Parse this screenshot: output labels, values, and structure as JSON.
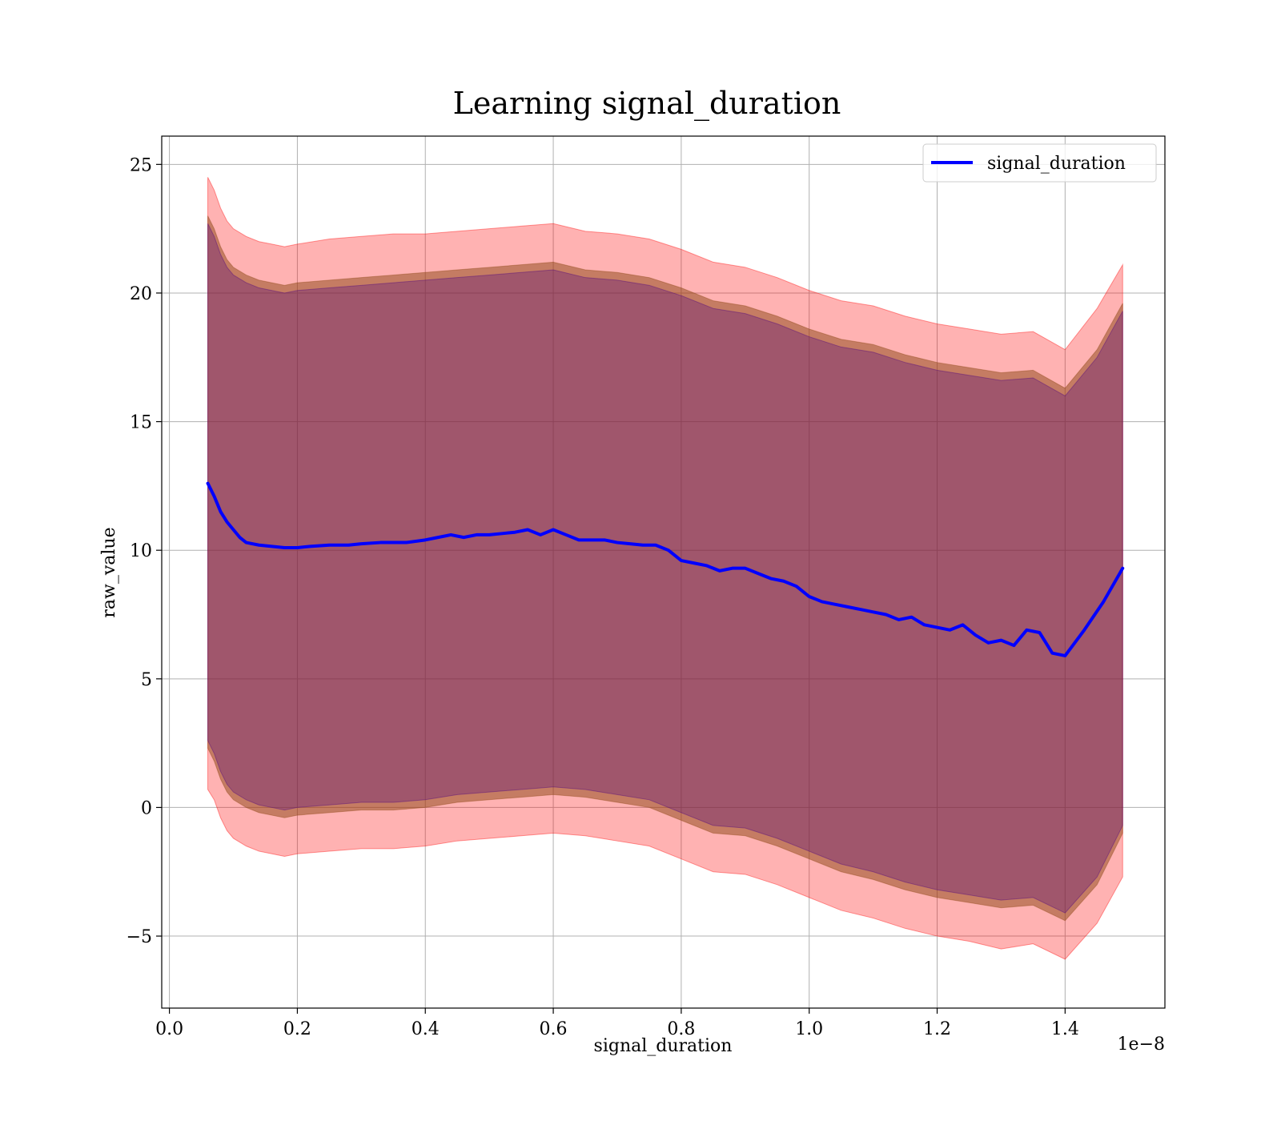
{
  "chart_data": {
    "type": "line",
    "title": "Learning signal_duration",
    "xlabel": "signal_duration",
    "ylabel": "raw_value",
    "x_offset_text": "1e−8",
    "xlim": [
      -0.012,
      1.556
    ],
    "ylim": [
      -7.8,
      26.1
    ],
    "x_ticks": [
      0.0,
      0.2,
      0.4,
      0.6,
      0.8,
      1.0,
      1.2,
      1.4
    ],
    "x_tick_labels": [
      "0.0",
      "0.2",
      "0.4",
      "0.6",
      "0.8",
      "1.0",
      "1.2",
      "1.4"
    ],
    "y_ticks": [
      -5,
      0,
      5,
      10,
      15,
      20,
      25
    ],
    "y_tick_labels": [
      "−5",
      "0",
      "5",
      "10",
      "15",
      "20",
      "25"
    ],
    "grid": true,
    "legend_position": "top-right",
    "colors": {
      "line": "#0000ff",
      "outer_band": "#ff0000",
      "middle_band": "#8b4513",
      "inner_band": "#4b0082"
    },
    "series": [
      {
        "name": "signal_duration",
        "x": [
          0.06,
          0.07,
          0.08,
          0.09,
          0.1,
          0.11,
          0.12,
          0.14,
          0.16,
          0.18,
          0.2,
          0.22,
          0.25,
          0.28,
          0.3,
          0.33,
          0.35,
          0.37,
          0.4,
          0.42,
          0.44,
          0.46,
          0.48,
          0.5,
          0.52,
          0.54,
          0.56,
          0.58,
          0.6,
          0.62,
          0.64,
          0.66,
          0.68,
          0.7,
          0.72,
          0.74,
          0.76,
          0.78,
          0.8,
          0.82,
          0.84,
          0.86,
          0.88,
          0.9,
          0.92,
          0.94,
          0.96,
          0.98,
          1.0,
          1.02,
          1.04,
          1.06,
          1.08,
          1.1,
          1.12,
          1.14,
          1.16,
          1.18,
          1.2,
          1.22,
          1.24,
          1.26,
          1.28,
          1.3,
          1.32,
          1.34,
          1.36,
          1.38,
          1.4,
          1.43,
          1.46,
          1.49
        ],
        "y": [
          12.6,
          12.1,
          11.5,
          11.1,
          10.8,
          10.5,
          10.3,
          10.2,
          10.15,
          10.1,
          10.1,
          10.15,
          10.2,
          10.2,
          10.25,
          10.3,
          10.3,
          10.3,
          10.4,
          10.5,
          10.6,
          10.5,
          10.6,
          10.6,
          10.65,
          10.7,
          10.8,
          10.6,
          10.8,
          10.6,
          10.4,
          10.4,
          10.4,
          10.3,
          10.25,
          10.2,
          10.2,
          10.0,
          9.6,
          9.5,
          9.4,
          9.2,
          9.3,
          9.3,
          9.1,
          8.9,
          8.8,
          8.6,
          8.2,
          8.0,
          7.9,
          7.8,
          7.7,
          7.6,
          7.5,
          7.3,
          7.4,
          7.1,
          7.0,
          6.9,
          7.1,
          6.7,
          6.4,
          6.5,
          6.3,
          6.9,
          6.8,
          6.0,
          5.9,
          6.9,
          8.0,
          9.3
        ]
      }
    ],
    "bands": [
      {
        "color": "outer_band",
        "x": [
          0.06,
          0.07,
          0.08,
          0.09,
          0.1,
          0.12,
          0.14,
          0.16,
          0.18,
          0.2,
          0.25,
          0.3,
          0.35,
          0.4,
          0.45,
          0.5,
          0.55,
          0.6,
          0.65,
          0.7,
          0.75,
          0.8,
          0.85,
          0.9,
          0.95,
          1.0,
          1.05,
          1.1,
          1.15,
          1.2,
          1.25,
          1.3,
          1.35,
          1.4,
          1.45,
          1.49
        ],
        "upper": [
          24.5,
          24.0,
          23.3,
          22.8,
          22.5,
          22.2,
          22.0,
          21.9,
          21.8,
          21.9,
          22.1,
          22.2,
          22.3,
          22.3,
          22.4,
          22.5,
          22.6,
          22.7,
          22.4,
          22.3,
          22.1,
          21.7,
          21.2,
          21.0,
          20.6,
          20.1,
          19.7,
          19.5,
          19.1,
          18.8,
          18.6,
          18.4,
          18.5,
          17.8,
          19.4,
          21.1
        ],
        "lower": [
          0.7,
          0.3,
          -0.4,
          -0.9,
          -1.2,
          -1.5,
          -1.7,
          -1.8,
          -1.9,
          -1.8,
          -1.7,
          -1.6,
          -1.6,
          -1.5,
          -1.3,
          -1.2,
          -1.1,
          -1.0,
          -1.1,
          -1.3,
          -1.5,
          -2.0,
          -2.5,
          -2.6,
          -3.0,
          -3.5,
          -4.0,
          -4.3,
          -4.7,
          -5.0,
          -5.2,
          -5.5,
          -5.3,
          -5.9,
          -4.5,
          -2.7
        ]
      },
      {
        "color": "middle_band",
        "x": [
          0.06,
          0.07,
          0.08,
          0.09,
          0.1,
          0.12,
          0.14,
          0.16,
          0.18,
          0.2,
          0.25,
          0.3,
          0.35,
          0.4,
          0.45,
          0.5,
          0.55,
          0.6,
          0.65,
          0.7,
          0.75,
          0.8,
          0.85,
          0.9,
          0.95,
          1.0,
          1.05,
          1.1,
          1.15,
          1.2,
          1.25,
          1.3,
          1.35,
          1.4,
          1.45,
          1.49
        ],
        "upper": [
          23.0,
          22.5,
          21.8,
          21.3,
          21.0,
          20.7,
          20.5,
          20.4,
          20.3,
          20.4,
          20.5,
          20.6,
          20.7,
          20.8,
          20.9,
          21.0,
          21.1,
          21.2,
          20.9,
          20.8,
          20.6,
          20.2,
          19.7,
          19.5,
          19.1,
          18.6,
          18.2,
          18.0,
          17.6,
          17.3,
          17.1,
          16.9,
          17.0,
          16.3,
          17.8,
          19.6
        ],
        "lower": [
          2.3,
          1.8,
          1.1,
          0.6,
          0.3,
          0.0,
          -0.2,
          -0.3,
          -0.4,
          -0.3,
          -0.2,
          -0.1,
          -0.1,
          0.0,
          0.2,
          0.3,
          0.4,
          0.5,
          0.4,
          0.2,
          0.0,
          -0.5,
          -1.0,
          -1.1,
          -1.5,
          -2.0,
          -2.5,
          -2.8,
          -3.2,
          -3.5,
          -3.7,
          -3.9,
          -3.8,
          -4.4,
          -3.0,
          -1.0
        ]
      },
      {
        "color": "inner_band",
        "x": [
          0.06,
          0.07,
          0.08,
          0.09,
          0.1,
          0.12,
          0.14,
          0.16,
          0.18,
          0.2,
          0.25,
          0.3,
          0.35,
          0.4,
          0.45,
          0.5,
          0.55,
          0.6,
          0.65,
          0.7,
          0.75,
          0.8,
          0.85,
          0.9,
          0.95,
          1.0,
          1.05,
          1.1,
          1.15,
          1.2,
          1.25,
          1.3,
          1.35,
          1.4,
          1.45,
          1.49
        ],
        "upper": [
          22.7,
          22.2,
          21.5,
          21.0,
          20.7,
          20.4,
          20.2,
          20.1,
          20.0,
          20.1,
          20.2,
          20.3,
          20.4,
          20.5,
          20.6,
          20.7,
          20.8,
          20.9,
          20.6,
          20.5,
          20.3,
          19.9,
          19.4,
          19.2,
          18.8,
          18.3,
          17.9,
          17.7,
          17.3,
          17.0,
          16.8,
          16.6,
          16.7,
          16.0,
          17.5,
          19.3
        ],
        "lower": [
          2.6,
          2.1,
          1.4,
          0.9,
          0.6,
          0.3,
          0.1,
          0.0,
          -0.1,
          0.0,
          0.1,
          0.2,
          0.2,
          0.3,
          0.5,
          0.6,
          0.7,
          0.8,
          0.7,
          0.5,
          0.3,
          -0.2,
          -0.7,
          -0.8,
          -1.2,
          -1.7,
          -2.2,
          -2.5,
          -2.9,
          -3.2,
          -3.4,
          -3.6,
          -3.5,
          -4.1,
          -2.7,
          -0.7
        ]
      }
    ]
  }
}
